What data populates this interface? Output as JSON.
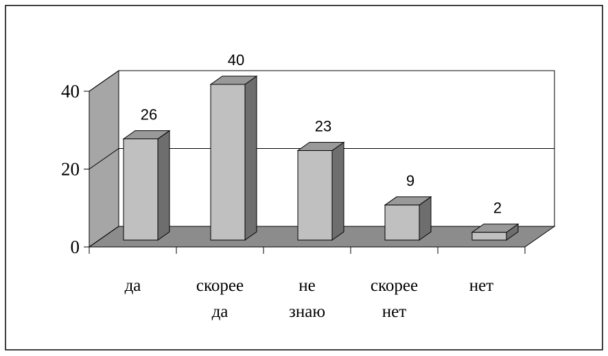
{
  "chart_data": {
    "type": "bar3d",
    "categories": [
      "да",
      "скорее да",
      "не знаю",
      "скорее нет",
      "нет"
    ],
    "values": [
      26,
      40,
      23,
      9,
      2
    ],
    "color": "#c0c0c0",
    "ylim": [
      0,
      40
    ],
    "yticks": [
      0,
      20,
      40
    ],
    "grid": true
  }
}
